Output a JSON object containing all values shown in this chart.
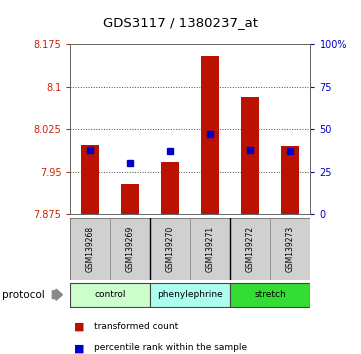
{
  "title": "GDS3117 / 1380237_at",
  "samples": [
    "GSM139268",
    "GSM139269",
    "GSM139270",
    "GSM139271",
    "GSM139272",
    "GSM139273"
  ],
  "red_values": [
    7.998,
    7.928,
    7.967,
    8.155,
    8.082,
    7.995
  ],
  "blue_percentiles": [
    38,
    30,
    37,
    47,
    38,
    37
  ],
  "y_min": 7.875,
  "y_max": 8.175,
  "y_ticks": [
    7.875,
    7.95,
    8.025,
    8.1,
    8.175
  ],
  "y_tick_labels": [
    "7.875",
    "7.95",
    "8.025",
    "8.1",
    "8.175"
  ],
  "y2_ticks": [
    0,
    25,
    50,
    75,
    100
  ],
  "y2_tick_labels": [
    "0",
    "25",
    "50",
    "75",
    "100%"
  ],
  "protocols": [
    {
      "label": "control",
      "start": 0,
      "end": 2,
      "color": "#ccffcc"
    },
    {
      "label": "phenylephrine",
      "start": 2,
      "end": 4,
      "color": "#aaffee"
    },
    {
      "label": "stretch",
      "start": 4,
      "end": 6,
      "color": "#33dd33"
    }
  ],
  "bar_color": "#bb1100",
  "blue_color": "#0000cc",
  "bar_width": 0.45
}
